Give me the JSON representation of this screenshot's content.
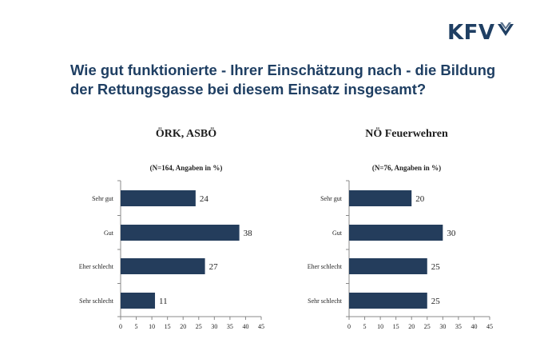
{
  "header": {
    "logo_text": "KFV",
    "question": "Wie gut funktionierte - Ihrer Einschätzung nach - die Bildung der Rettungsgasse bei diesem Einsatz insgesamt?"
  },
  "colors": {
    "bar": "#243d5c",
    "title": "#1f3f63"
  },
  "chart_data": [
    {
      "type": "bar",
      "orientation": "horizontal",
      "title": "ÖRK, ASBÖ",
      "subtitle": "(N=164, Angaben in %)",
      "categories": [
        "Sehr gut",
        "Gut",
        "Eher schlecht",
        "Sehr schlecht"
      ],
      "values": [
        24,
        38,
        27,
        11
      ],
      "xlim": [
        0,
        45
      ],
      "ticks": [
        0,
        5,
        10,
        15,
        20,
        25,
        30,
        35,
        40,
        45
      ],
      "grid": false
    },
    {
      "type": "bar",
      "orientation": "horizontal",
      "title": "NÖ Feuerwehren",
      "subtitle": "(N=76, Angaben in %)",
      "categories": [
        "Sehr gut",
        "Gut",
        "Eher schlecht",
        "Sehr schlecht"
      ],
      "values": [
        20,
        30,
        25,
        25
      ],
      "xlim": [
        0,
        45
      ],
      "ticks": [
        0,
        5,
        10,
        15,
        20,
        25,
        30,
        35,
        40,
        45
      ],
      "grid": false
    }
  ]
}
